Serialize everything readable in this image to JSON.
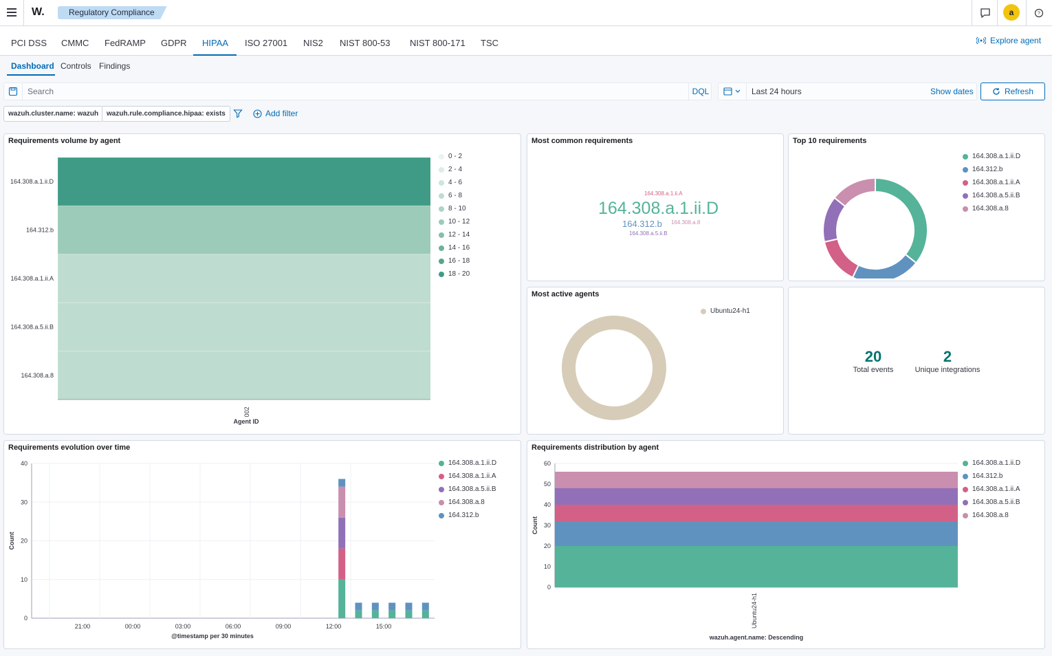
{
  "app": {
    "breadcrumb": "Regulatory Compliance",
    "avatar_initial": "a",
    "logo": "W."
  },
  "tabs": {
    "items": [
      "PCI DSS",
      "CMMC",
      "FedRAMP",
      "GDPR",
      "HIPAA",
      "ISO 27001",
      "NIS2",
      "NIST 800-53",
      "NIST 800-171",
      "TSC"
    ],
    "active": "HIPAA",
    "explore_agent": "Explore agent"
  },
  "subtabs": {
    "items": [
      "Dashboard",
      "Controls",
      "Findings"
    ],
    "active": "Dashboard"
  },
  "search": {
    "placeholder": "Search",
    "language": "DQL",
    "time_range": "Last 24 hours",
    "show_dates": "Show dates",
    "refresh": "Refresh"
  },
  "filters": {
    "pills": [
      "wazuh.cluster.name: wazuh",
      "wazuh.rule.compliance.hipaa: exists"
    ],
    "add_filter": "Add filter"
  },
  "colors": {
    "accent": "#006bb8",
    "teal": "#54b399",
    "blue": "#6092c0",
    "pink": "#d36086",
    "purple": "#9170b8",
    "lightpink": "#ca8eae",
    "beige": "#d6ccb8"
  },
  "panels": {
    "volume_by_agent": {
      "title": "Requirements volume by agent",
      "xlabel": "Agent ID",
      "legend": [
        "0 - 2",
        "2 - 4",
        "4 - 6",
        "6 - 8",
        "8 - 10",
        "10 - 12",
        "12 - 14",
        "14 - 16",
        "16 - 18",
        "18 - 20"
      ]
    },
    "most_common": {
      "title": "Most common requirements",
      "words": [
        {
          "text": "164.308.a.1.ii.A",
          "color": "#d36086"
        },
        {
          "text": "164.308.a.1.ii.D",
          "color": "#54b399"
        },
        {
          "text": "164.312.b",
          "color": "#6092c0"
        },
        {
          "text": "164.308.a.8",
          "color": "#ca8eae"
        },
        {
          "text": "164.308.a.5.ii.B",
          "color": "#9170b8"
        }
      ]
    },
    "top10": {
      "title": "Top 10 requirements",
      "legend": [
        "164.308.a.1.ii.D",
        "164.312.b",
        "164.308.a.1.ii.A",
        "164.308.a.5.ii.B",
        "164.308.a.8"
      ]
    },
    "most_active_agents": {
      "title": "Most active agents",
      "legend": [
        "Ubuntu24-h1"
      ]
    },
    "metrics": {
      "total_events_value": "20",
      "total_events_label": "Total events",
      "unique_integrations_value": "2",
      "unique_integrations_label": "Unique integrations"
    },
    "evolution": {
      "title": "Requirements evolution over time",
      "xlabel": "@timestamp per 30 minutes",
      "ylabel": "Count",
      "legend": [
        "164.308.a.1.ii.D",
        "164.308.a.1.ii.A",
        "164.308.a.5.ii.B",
        "164.308.a.8",
        "164.312.b"
      ]
    },
    "distribution": {
      "title": "Requirements distribution by agent",
      "xlabel": "wazuh.agent.name: Descending",
      "ylabel": "Count",
      "legend": [
        "164.308.a.1.ii.D",
        "164.312.b",
        "164.308.a.1.ii.A",
        "164.308.a.5.ii.B",
        "164.308.a.8"
      ]
    }
  },
  "chart_data": [
    {
      "type": "heatmap",
      "title": "Requirements volume by agent",
      "xlabel": "Agent ID",
      "categories_x": [
        "002"
      ],
      "categories_y": [
        "164.308.a.1.ii.D",
        "164.312.b",
        "164.308.a.1.ii.A",
        "164.308.a.5.ii.B",
        "164.308.a.8"
      ],
      "values": [
        20,
        12,
        8,
        8,
        8
      ],
      "legend_ranges": [
        "0 - 2",
        "2 - 4",
        "4 - 6",
        "6 - 8",
        "8 - 10",
        "10 - 12",
        "12 - 14",
        "14 - 16",
        "16 - 18",
        "18 - 20"
      ]
    },
    {
      "type": "pie",
      "title": "Top 10 requirements",
      "donut": true,
      "categories": [
        "164.308.a.1.ii.D",
        "164.312.b",
        "164.308.a.1.ii.A",
        "164.308.a.5.ii.B",
        "164.308.a.8"
      ],
      "values": [
        20,
        12,
        8,
        8,
        8
      ],
      "colors": [
        "#54b399",
        "#6092c0",
        "#d36086",
        "#9170b8",
        "#ca8eae"
      ]
    },
    {
      "type": "pie",
      "title": "Most active agents",
      "donut": true,
      "categories": [
        "Ubuntu24-h1"
      ],
      "values": [
        56
      ],
      "colors": [
        "#d6ccb8"
      ]
    },
    {
      "type": "bar",
      "stacked": true,
      "title": "Requirements evolution over time",
      "xlabel": "@timestamp per 30 minutes",
      "ylabel": "Count",
      "x_ticks": [
        "21:00",
        "00:00",
        "03:00",
        "06:00",
        "09:00",
        "12:00",
        "15:00"
      ],
      "ylim": [
        0,
        40
      ],
      "y_ticks": [
        0,
        10,
        20,
        30,
        40
      ],
      "x": [
        "12:30",
        "13:30",
        "14:30",
        "15:30",
        "16:30",
        "17:30"
      ],
      "series": [
        {
          "name": "164.308.a.1.ii.D",
          "values": [
            10,
            2,
            2,
            2,
            2,
            2
          ],
          "color": "#54b399"
        },
        {
          "name": "164.308.a.1.ii.A",
          "values": [
            8,
            0,
            0,
            0,
            0,
            0
          ],
          "color": "#d36086"
        },
        {
          "name": "164.308.a.5.ii.B",
          "values": [
            8,
            0,
            0,
            0,
            0,
            0
          ],
          "color": "#9170b8"
        },
        {
          "name": "164.308.a.8",
          "values": [
            8,
            0,
            0,
            0,
            0,
            0
          ],
          "color": "#ca8eae"
        },
        {
          "name": "164.312.b",
          "values": [
            2,
            2,
            2,
            2,
            2,
            2
          ],
          "color": "#6092c0"
        }
      ]
    },
    {
      "type": "bar",
      "stacked": true,
      "title": "Requirements distribution by agent",
      "xlabel": "wazuh.agent.name: Descending",
      "ylabel": "Count",
      "categories": [
        "Ubuntu24-h1"
      ],
      "ylim": [
        0,
        60
      ],
      "y_ticks": [
        0,
        10,
        20,
        30,
        40,
        50,
        60
      ],
      "series": [
        {
          "name": "164.308.a.1.ii.D",
          "values": [
            20
          ],
          "color": "#54b399"
        },
        {
          "name": "164.312.b",
          "values": [
            12
          ],
          "color": "#6092c0"
        },
        {
          "name": "164.308.a.1.ii.A",
          "values": [
            8
          ],
          "color": "#d36086"
        },
        {
          "name": "164.308.a.5.ii.B",
          "values": [
            8
          ],
          "color": "#9170b8"
        },
        {
          "name": "164.308.a.8",
          "values": [
            8
          ],
          "color": "#ca8eae"
        }
      ]
    }
  ]
}
